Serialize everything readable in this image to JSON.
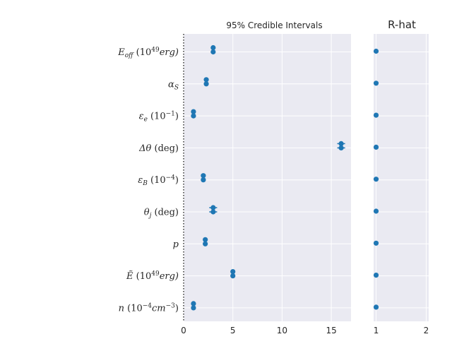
{
  "chart_data": [
    {
      "type": "scatter",
      "title": "95% Credible Intervals",
      "categories": [
        "E_off (10^49 erg)",
        "α_S",
        "ε_e (10^-1)",
        "Δθ (deg)",
        "ε_B (10^-4)",
        "θ_j (deg)",
        "p",
        "Ẽ (10^49 erg)",
        "n (10^-4 cm^-3)"
      ],
      "labels": [
        {
          "main": "E",
          "sub": "off",
          "unit": "(10",
          "sup": "49",
          "tail": "erg)"
        },
        {
          "main": "α",
          "sub": "S",
          "unit": "",
          "sup": "",
          "tail": ""
        },
        {
          "main": "ε",
          "sub": "e",
          "unit": "(10",
          "sup": "−1",
          "tail": ")"
        },
        {
          "main": "Δθ",
          "sub": "",
          "unit": "(deg)",
          "sup": "",
          "tail": ""
        },
        {
          "main": "ε",
          "sub": "B",
          "unit": "(10",
          "sup": "−4",
          "tail": ")"
        },
        {
          "main": "θ",
          "sub": "j",
          "unit": "(deg)",
          "sup": "",
          "tail": ""
        },
        {
          "main": "p",
          "sub": "",
          "unit": "",
          "sup": "",
          "tail": ""
        },
        {
          "main": "Ẽ",
          "sub": "",
          "unit": "(10",
          "sup": "49",
          "tail": "erg)"
        },
        {
          "main": "n",
          "sub": "",
          "unit": "(10",
          "sup": "−4",
          "tail": "cm",
          "sup2": "−3",
          "tail2": ")"
        }
      ],
      "series": [
        {
          "values": [
            3.0,
            2.3,
            1.0,
            16.0,
            2.0,
            3.0,
            2.2,
            5.0,
            1.0
          ],
          "lower": [
            3.0,
            2.3,
            1.0,
            15.6,
            2.0,
            2.6,
            2.2,
            5.0,
            1.0
          ],
          "upper": [
            3.0,
            2.3,
            1.0,
            16.4,
            2.0,
            3.4,
            2.2,
            5.0,
            1.0
          ]
        },
        {
          "values": [
            3.0,
            2.3,
            1.0,
            16.0,
            2.0,
            3.0,
            2.2,
            5.0,
            1.0
          ],
          "lower": [
            3.0,
            2.3,
            1.0,
            15.6,
            2.0,
            2.6,
            2.2,
            5.0,
            1.0
          ],
          "upper": [
            3.0,
            2.3,
            1.0,
            16.4,
            2.0,
            3.4,
            2.2,
            5.0,
            1.0
          ]
        }
      ],
      "xlim": [
        0,
        17
      ],
      "xticks": [
        0,
        5,
        10,
        15
      ],
      "reference_line": 0,
      "grid": true
    },
    {
      "type": "scatter",
      "title": "R-hat",
      "values": [
        1,
        1,
        1,
        1,
        1,
        1,
        1,
        1,
        1
      ],
      "xlim": [
        0.95,
        2.05
      ],
      "xticks": [
        1,
        2
      ],
      "grid": true
    }
  ],
  "colors": {
    "point": "#1f77b4",
    "panel_bg": "#eaeaf2",
    "grid": "#ffffff",
    "text": "#262626"
  }
}
